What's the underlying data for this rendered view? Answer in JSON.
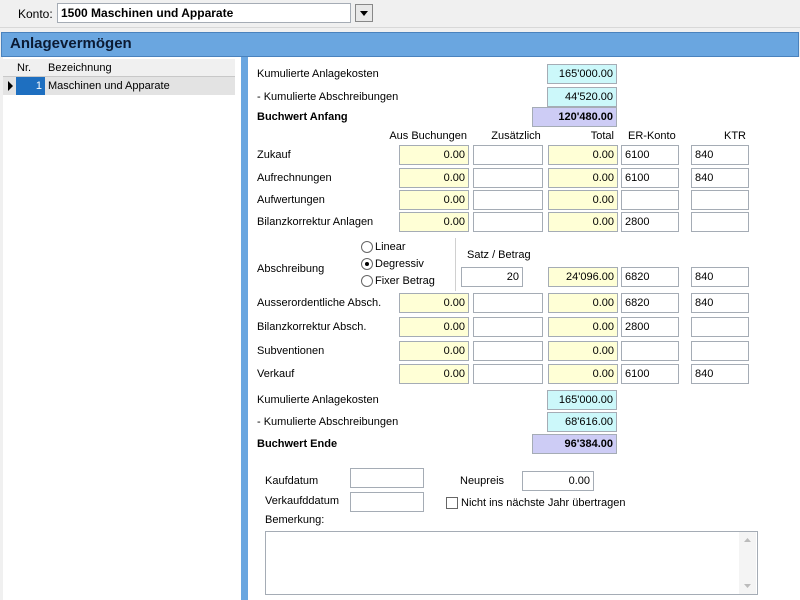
{
  "toolbar": {
    "konto_label": "Konto:",
    "konto_value": "1500 Maschinen und Apparate"
  },
  "header": {
    "title": "Anlagevermögen"
  },
  "grid": {
    "columns": [
      "Nr.",
      "Bezeichnung"
    ],
    "rows": [
      [
        "1",
        "Maschinen und Apparate"
      ]
    ]
  },
  "opening": {
    "cost": {
      "label": "Kumulierte Anlagekosten",
      "value": "165'000.00"
    },
    "depreciation": {
      "label": "- Kumulierte Abschreibungen",
      "value": "44'520.00"
    },
    "book_value": {
      "label": "Buchwert Anfang",
      "value": "120'480.00"
    }
  },
  "movements": {
    "columns": [
      "Aus Buchungen",
      "Zusätzlich",
      "Total",
      "ER-Konto",
      "KTR"
    ],
    "rows": [
      {
        "label": "Zukauf",
        "cells": [
          "0.00",
          null,
          "0.00",
          "6100",
          "840"
        ]
      },
      {
        "label": "Aufrechnungen",
        "cells": [
          "0.00",
          null,
          "0.00",
          "6100",
          "840"
        ]
      },
      {
        "label": "Aufwertungen",
        "cells": [
          "0.00",
          null,
          "0.00",
          null,
          null
        ]
      },
      {
        "label": "Bilanzkorrektur Anlagen",
        "cells": [
          "0.00",
          null,
          "0.00",
          "2800",
          null
        ]
      },
      {
        "label": "Ausserordentliche Absch.",
        "cells": [
          "0.00",
          null,
          "0.00",
          "6820",
          "840"
        ]
      },
      {
        "label": "Bilanzkorrektur Absch.",
        "cells": [
          "0.00",
          null,
          "0.00",
          "2800",
          null
        ]
      },
      {
        "label": "Subventionen",
        "cells": [
          "0.00",
          null,
          "0.00",
          null,
          null
        ]
      },
      {
        "label": "Verkauf",
        "cells": [
          "0.00",
          null,
          "0.00",
          "6100",
          "840"
        ]
      }
    ]
  },
  "depreciation": {
    "label": "Abschreibung",
    "methods": [
      "Linear",
      "Degressiv",
      "Fixer Betrag"
    ],
    "selected": 1,
    "rate_label": "Satz / Betrag",
    "rate": "20",
    "total": "24'096.00",
    "er_konto": "6820",
    "ktr": "840"
  },
  "closing": {
    "cost": {
      "label": "Kumulierte Anlagekosten",
      "value": "165'000.00"
    },
    "depreciation": {
      "label": "- Kumulierte Abschreibungen",
      "value": "68'616.00"
    },
    "book_value": {
      "label": "Buchwert Ende",
      "value": "96'384.00"
    }
  },
  "details": {
    "purchase_date_label": "Kaufdatum",
    "sale_date_label": "Verkaufddatum",
    "new_price_label": "Neupreis",
    "new_price": "0.00",
    "carry_over_label": "Nicht ins nächste Jahr übertragen",
    "remark_label": "Bemerkung:"
  }
}
